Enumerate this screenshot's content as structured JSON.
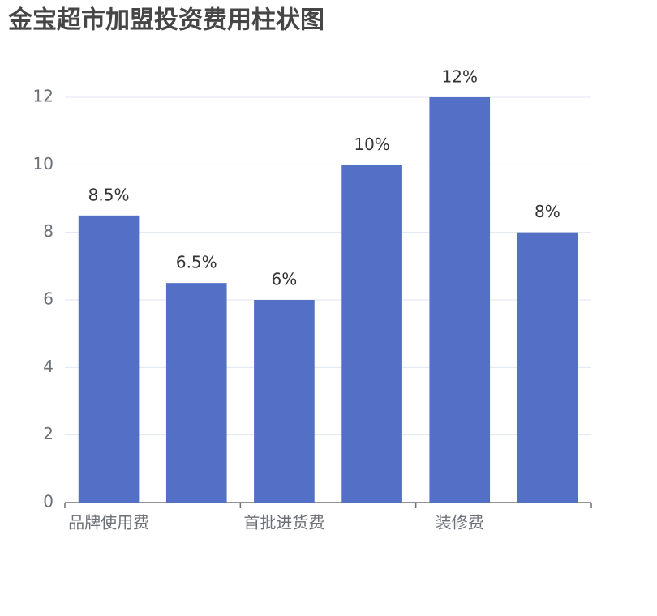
{
  "chart_data": {
    "type": "bar",
    "title": "金宝超市加盟投资费用柱状图",
    "categories": [
      "品牌使用费",
      null,
      "首批进货费",
      null,
      "装修费",
      null
    ],
    "values": [
      8.5,
      6.5,
      6,
      10,
      12,
      8
    ],
    "value_labels": [
      "8.5%",
      "6.5%",
      "6%",
      "10%",
      "12%",
      "8%"
    ],
    "color": "#5470c6",
    "ylim": [
      0,
      12
    ],
    "yticks": [
      0,
      2,
      4,
      6,
      8,
      10,
      12
    ],
    "grid": true
  }
}
